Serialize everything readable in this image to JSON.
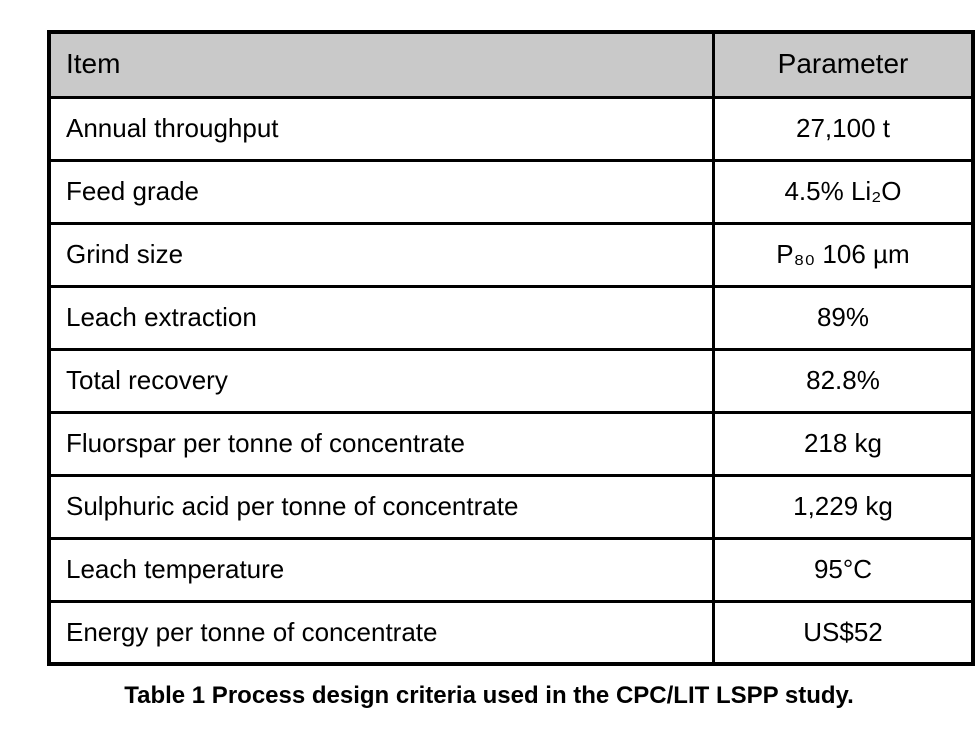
{
  "table": {
    "columns": [
      "Item",
      "Parameter"
    ],
    "rows": [
      {
        "item": "Annual throughput",
        "parameter": "27,100 t"
      },
      {
        "item": "Feed grade",
        "parameter": "4.5% Li₂O"
      },
      {
        "item": "Grind size",
        "parameter": "P₈₀ 106 µm"
      },
      {
        "item": "Leach extraction",
        "parameter": "89%"
      },
      {
        "item": "Total recovery",
        "parameter": "82.8%"
      },
      {
        "item": "Fluorspar per tonne of concentrate",
        "parameter": "218 kg"
      },
      {
        "item": "Sulphuric acid per tonne of concentrate",
        "parameter": "1,229 kg"
      },
      {
        "item": "Leach temperature",
        "parameter": "95°C"
      },
      {
        "item": "Energy per tonne of concentrate",
        "parameter": "US$52"
      }
    ],
    "caption": "Table 1 Process design criteria used in the CPC/LIT LSPP study.",
    "header_bg": "#c9c9c9",
    "border_color": "#000000"
  }
}
